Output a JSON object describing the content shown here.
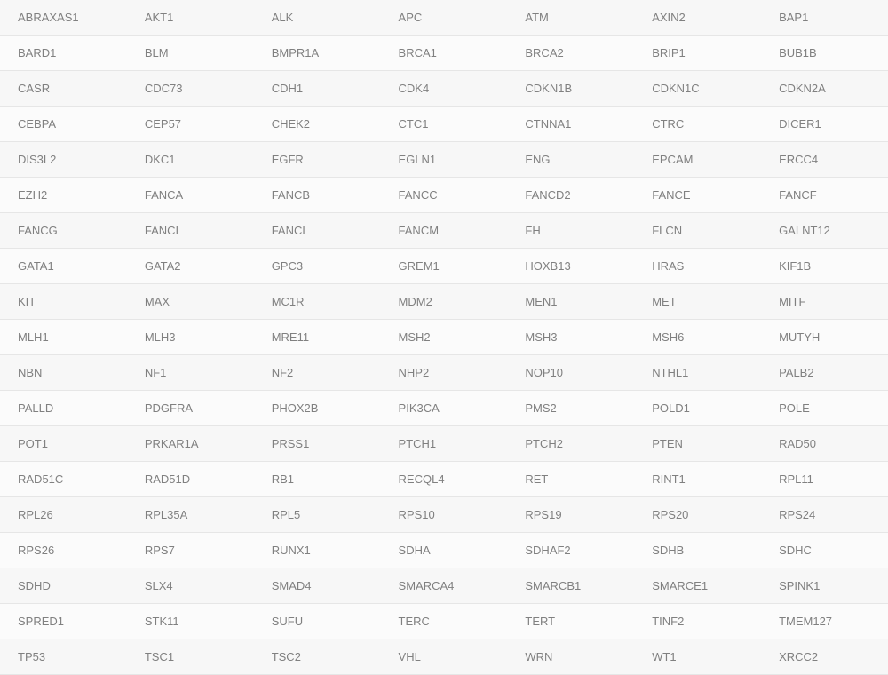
{
  "table": {
    "columns": 7,
    "cell_fontsize": 13,
    "text_color": "#808080",
    "row_bg_odd": "#f7f7f7",
    "row_bg_even": "#fbfbfb",
    "border_color": "#e6e6e6",
    "rows": [
      [
        "ABRAXAS1",
        "AKT1",
        "ALK",
        "APC",
        "ATM",
        "AXIN2",
        "BAP1"
      ],
      [
        "BARD1",
        "BLM",
        "BMPR1A",
        "BRCA1",
        "BRCA2",
        "BRIP1",
        "BUB1B"
      ],
      [
        "CASR",
        "CDC73",
        "CDH1",
        "CDK4",
        "CDKN1B",
        "CDKN1C",
        "CDKN2A"
      ],
      [
        "CEBPA",
        "CEP57",
        "CHEK2",
        "CTC1",
        "CTNNA1",
        "CTRC",
        "DICER1"
      ],
      [
        "DIS3L2",
        "DKC1",
        "EGFR",
        "EGLN1",
        "ENG",
        "EPCAM",
        "ERCC4"
      ],
      [
        "EZH2",
        "FANCA",
        "FANCB",
        "FANCC",
        "FANCD2",
        "FANCE",
        "FANCF"
      ],
      [
        "FANCG",
        "FANCI",
        "FANCL",
        "FANCM",
        "FH",
        "FLCN",
        "GALNT12"
      ],
      [
        "GATA1",
        "GATA2",
        "GPC3",
        "GREM1",
        "HOXB13",
        "HRAS",
        "KIF1B"
      ],
      [
        "KIT",
        "MAX",
        "MC1R",
        "MDM2",
        "MEN1",
        "MET",
        "MITF"
      ],
      [
        "MLH1",
        "MLH3",
        "MRE11",
        "MSH2",
        "MSH3",
        "MSH6",
        "MUTYH"
      ],
      [
        "NBN",
        "NF1",
        "NF2",
        "NHP2",
        "NOP10",
        "NTHL1",
        "PALB2"
      ],
      [
        "PALLD",
        "PDGFRA",
        "PHOX2B",
        "PIK3CA",
        "PMS2",
        "POLD1",
        "POLE"
      ],
      [
        "POT1",
        "PRKAR1A",
        "PRSS1",
        "PTCH1",
        "PTCH2",
        "PTEN",
        "RAD50"
      ],
      [
        "RAD51C",
        "RAD51D",
        "RB1",
        "RECQL4",
        "RET",
        "RINT1",
        "RPL11"
      ],
      [
        "RPL26",
        "RPL35A",
        "RPL5",
        "RPS10",
        "RPS19",
        "RPS20",
        "RPS24"
      ],
      [
        "RPS26",
        "RPS7",
        "RUNX1",
        "SDHA",
        "SDHAF2",
        "SDHB",
        "SDHC"
      ],
      [
        "SDHD",
        "SLX4",
        "SMAD4",
        "SMARCA4",
        "SMARCB1",
        "SMARCE1",
        "SPINK1"
      ],
      [
        "SPRED1",
        "STK11",
        "SUFU",
        "TERC",
        "TERT",
        "TINF2",
        "TMEM127"
      ],
      [
        "TP53",
        "TSC1",
        "TSC2",
        "VHL",
        "WRN",
        "WT1",
        "XRCC2"
      ]
    ]
  }
}
